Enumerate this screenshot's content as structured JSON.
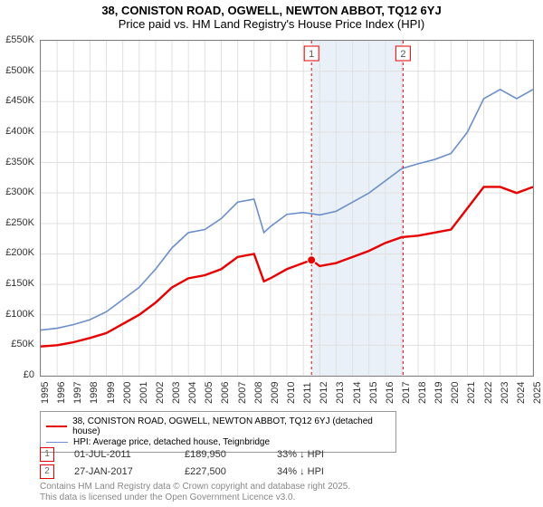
{
  "title_line1": "38, CONISTON ROAD, OGWELL, NEWTON ABBOT, TQ12 6YJ",
  "title_line2": "Price paid vs. HM Land Registry's House Price Index (HPI)",
  "chart": {
    "type": "line",
    "background_color": "#ffffff",
    "grid_color": "#e0e0e0",
    "border_color": "#808080",
    "y_axis": {
      "min": 0,
      "max": 550000,
      "tick_step": 50000,
      "format": "£{v}K",
      "labels": [
        "£0",
        "£50K",
        "£100K",
        "£150K",
        "£200K",
        "£250K",
        "£300K",
        "£350K",
        "£400K",
        "£450K",
        "£500K",
        "£550K"
      ]
    },
    "x_axis": {
      "min": 1995,
      "max": 2025,
      "tick_step": 1,
      "labels": [
        "1995",
        "1996",
        "1997",
        "1998",
        "1999",
        "2000",
        "2001",
        "2002",
        "2003",
        "2004",
        "2005",
        "2006",
        "2007",
        "2008",
        "2009",
        "2010",
        "2011",
        "2012",
        "2013",
        "2014",
        "2015",
        "2016",
        "2017",
        "2018",
        "2019",
        "2020",
        "2021",
        "2022",
        "2023",
        "2024",
        "2025"
      ]
    },
    "shaded_band": {
      "from": 2011.5,
      "to": 2017.08,
      "fill": "#eaf0f7"
    },
    "series": [
      {
        "name": "property",
        "label": "38, CONISTON ROAD, OGWELL, NEWTON ABBOT, TQ12 6YJ (detached house)",
        "color": "#e60000",
        "width": 2.4,
        "x": [
          1995,
          1996,
          1997,
          1998,
          1999,
          2000,
          2001,
          2002,
          2003,
          2004,
          2005,
          2006,
          2007,
          2008,
          2008.6,
          2009,
          2010,
          2011,
          2011.5,
          2012,
          2013,
          2014,
          2015,
          2016,
          2017,
          2018,
          2019,
          2020,
          2021,
          2022,
          2023,
          2024,
          2025
        ],
        "y": [
          48000,
          50000,
          55000,
          62000,
          70000,
          85000,
          100000,
          120000,
          145000,
          160000,
          165000,
          175000,
          195000,
          200000,
          155000,
          160000,
          175000,
          185000,
          189950,
          180000,
          185000,
          195000,
          205000,
          218000,
          227500,
          230000,
          235000,
          240000,
          275000,
          310000,
          310000,
          300000,
          310000
        ]
      },
      {
        "name": "hpi",
        "label": "HPI: Average price, detached house, Teignbridge",
        "color": "#6b8fc9",
        "width": 1.6,
        "x": [
          1995,
          1996,
          1997,
          1998,
          1999,
          2000,
          2001,
          2002,
          2003,
          2004,
          2005,
          2006,
          2007,
          2008,
          2008.6,
          2009,
          2010,
          2011,
          2012,
          2013,
          2014,
          2015,
          2016,
          2017,
          2018,
          2019,
          2020,
          2021,
          2022,
          2023,
          2024,
          2025
        ],
        "y": [
          75000,
          78000,
          84000,
          92000,
          105000,
          125000,
          145000,
          175000,
          210000,
          235000,
          240000,
          258000,
          285000,
          290000,
          235000,
          245000,
          265000,
          268000,
          264000,
          270000,
          285000,
          300000,
          320000,
          340000,
          348000,
          355000,
          365000,
          400000,
          455000,
          470000,
          455000,
          470000
        ]
      }
    ],
    "markers": [
      {
        "num": "1",
        "x": 2011.5,
        "border_color": "#e60000",
        "point_color": "#e60000",
        "point_y": 189950
      },
      {
        "num": "2",
        "x": 2017.08,
        "border_color": "#e60000"
      }
    ],
    "transactions": [
      {
        "num": "1",
        "date": "01-JUL-2011",
        "price": "£189,950",
        "delta": "33% ↓ HPI"
      },
      {
        "num": "2",
        "date": "27-JAN-2017",
        "price": "£227,500",
        "delta": "34% ↓ HPI"
      }
    ]
  },
  "footer_line1": "Contains HM Land Registry data © Crown copyright and database right 2025.",
  "footer_line2": "This data is licensed under the Open Government Licence v3.0."
}
